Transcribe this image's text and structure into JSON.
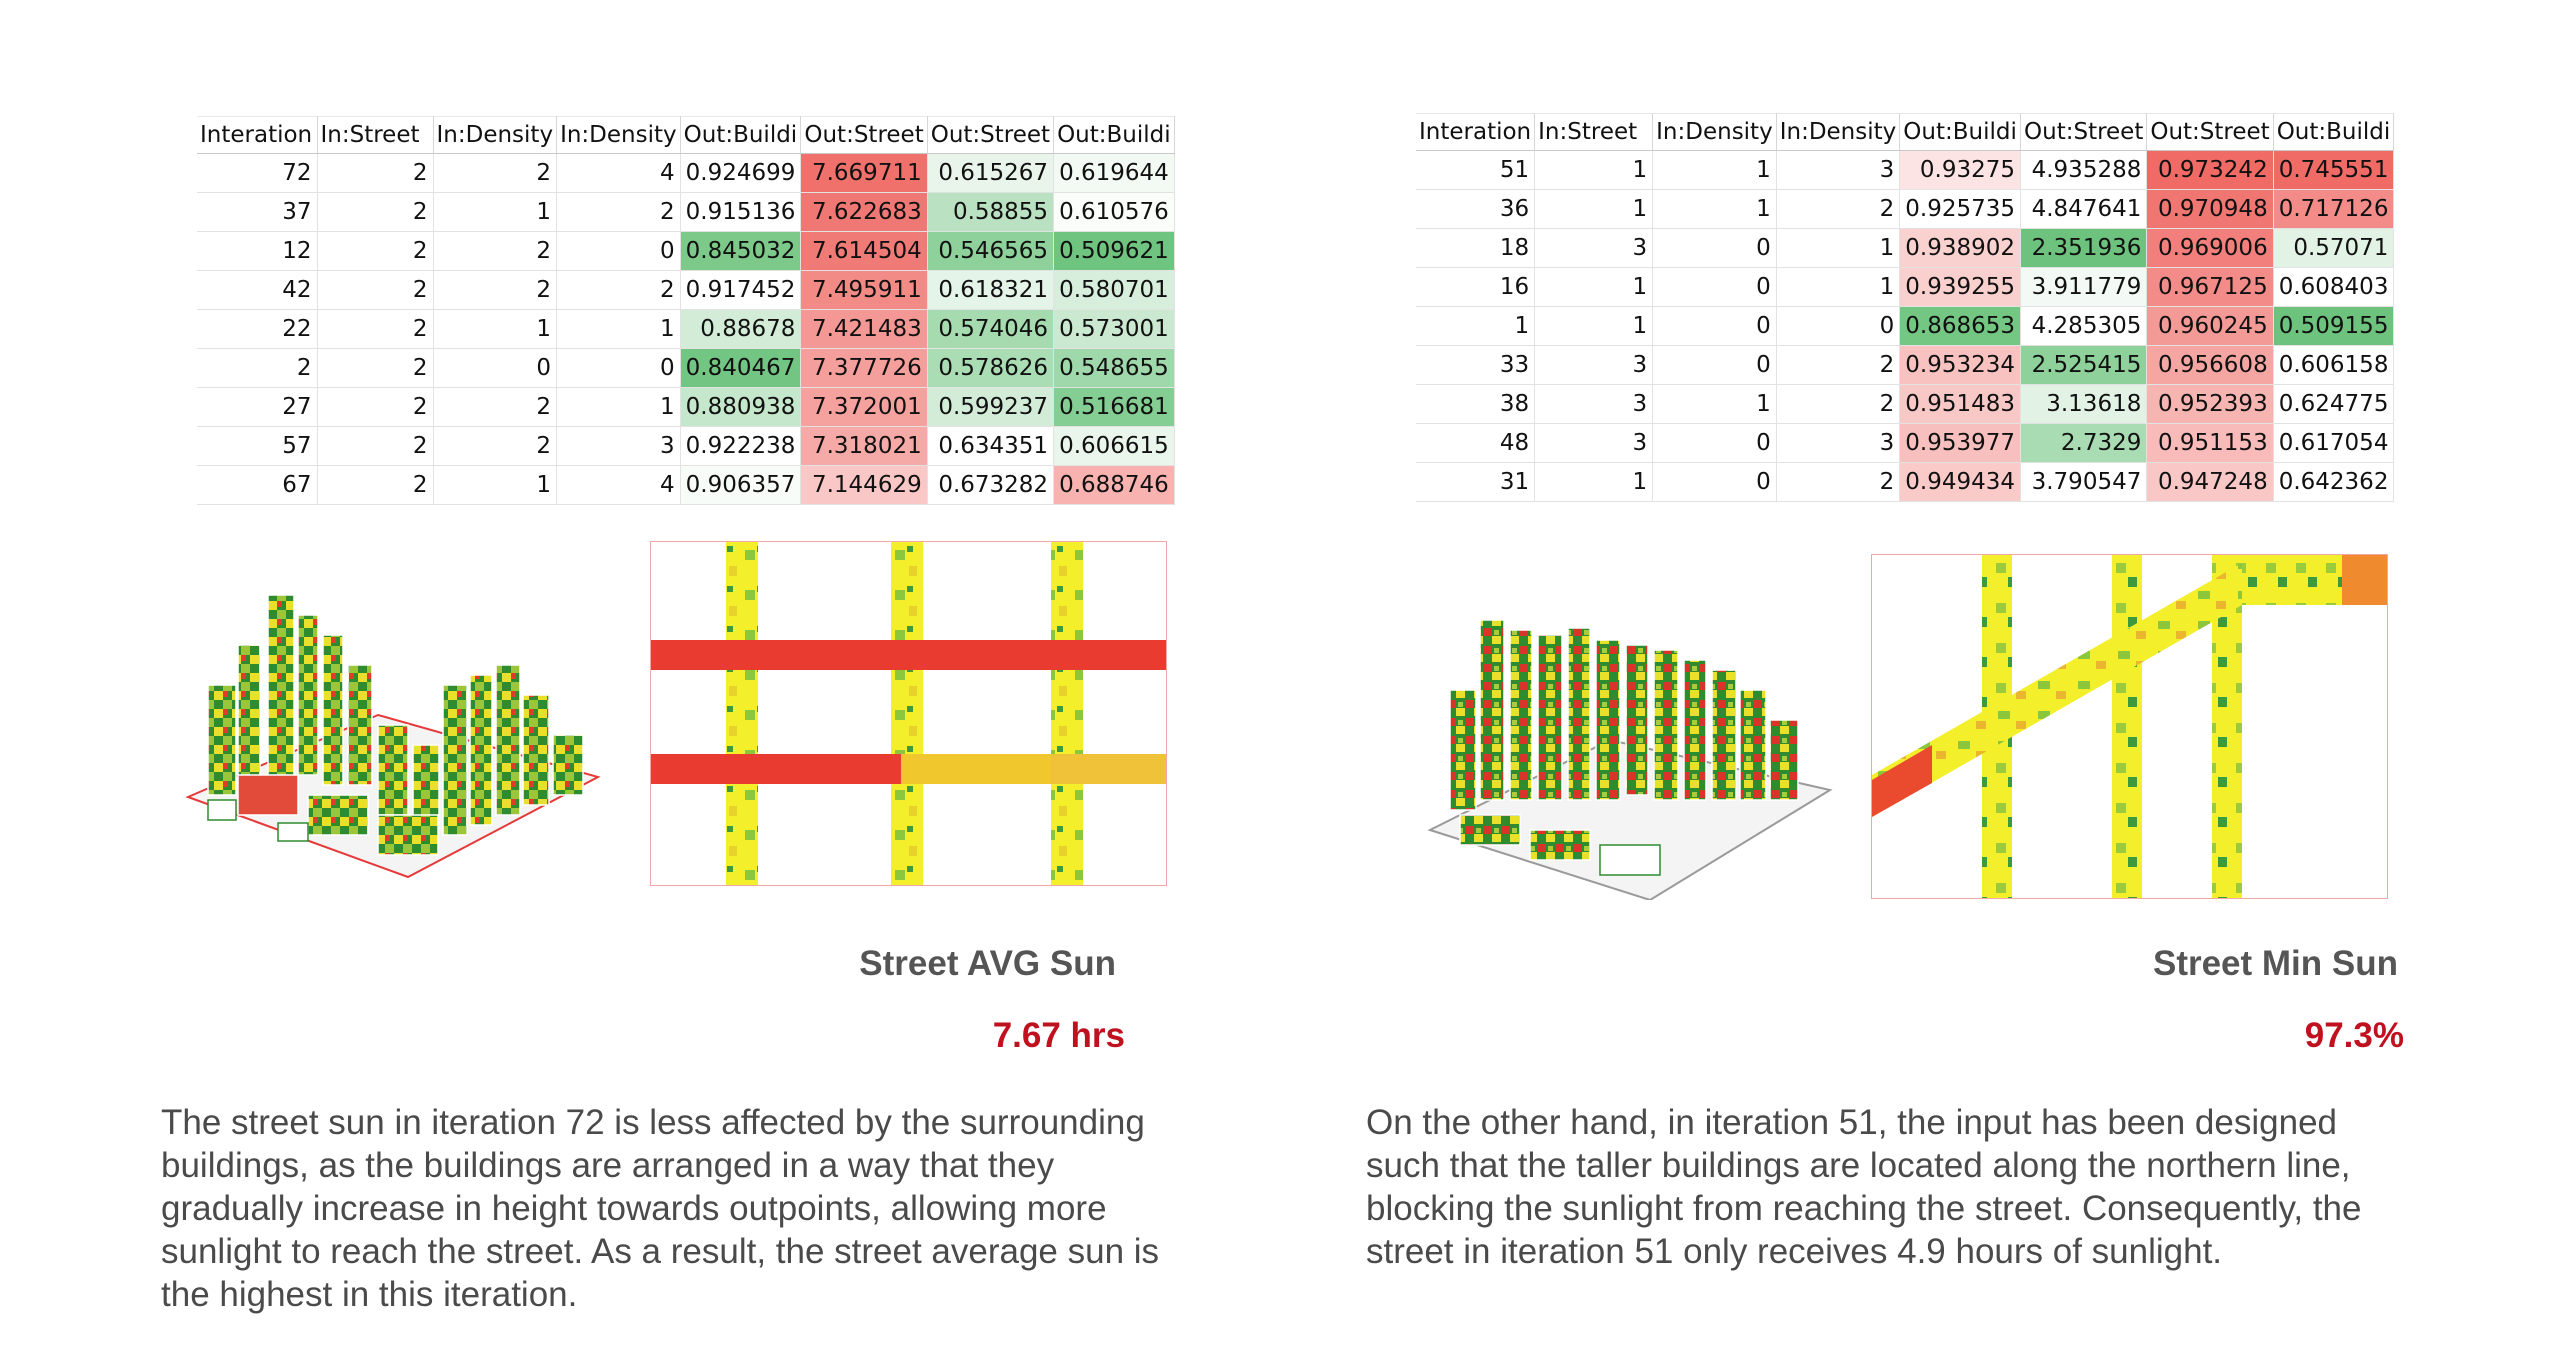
{
  "left": {
    "table": {
      "headers": [
        "Interation",
        "In:Street",
        "In:Density",
        "In:Density",
        "Out:Buildi",
        "Out:Street",
        "Out:Street",
        "Out:Buildi"
      ],
      "rows": [
        [
          "72",
          "2",
          "2",
          "4",
          "0.924699",
          "7.669711",
          "0.615267",
          "0.619644"
        ],
        [
          "37",
          "2",
          "1",
          "2",
          "0.915136",
          "7.622683",
          "0.58855",
          "0.610576"
        ],
        [
          "12",
          "2",
          "2",
          "0",
          "0.845032",
          "7.614504",
          "0.546565",
          "0.509621"
        ],
        [
          "42",
          "2",
          "2",
          "2",
          "0.917452",
          "7.495911",
          "0.618321",
          "0.580701"
        ],
        [
          "22",
          "2",
          "1",
          "1",
          "0.88678",
          "7.421483",
          "0.574046",
          "0.573001"
        ],
        [
          "2",
          "2",
          "0",
          "0",
          "0.840467",
          "7.377726",
          "0.578626",
          "0.548655"
        ],
        [
          "27",
          "2",
          "2",
          "1",
          "0.880938",
          "7.372001",
          "0.599237",
          "0.516681"
        ],
        [
          "57",
          "2",
          "2",
          "3",
          "0.922238",
          "7.318021",
          "0.634351",
          "0.606615"
        ],
        [
          "67",
          "2",
          "1",
          "4",
          "0.906357",
          "7.144629",
          "0.673282",
          "0.688746"
        ]
      ],
      "cell_colors": [
        [
          null,
          null,
          null,
          null,
          "#ffffff",
          "#f0706c",
          "#e9f5eb",
          "#f3f9f3"
        ],
        [
          null,
          null,
          null,
          null,
          "#ffffff",
          "#f07874",
          "#b9e1c2",
          "#fafdfa"
        ],
        [
          null,
          null,
          null,
          null,
          "#7cc98a",
          "#f07a76",
          "#8ed19a",
          "#6fc480"
        ],
        [
          null,
          null,
          null,
          null,
          "#ffffff",
          "#f28a86",
          "#e5f4e8",
          "#d6eedb"
        ],
        [
          null,
          null,
          null,
          null,
          "#d2ecd7",
          "#f39894",
          "#a6dbb0",
          "#cbe9d1"
        ],
        [
          null,
          null,
          null,
          null,
          "#72c582",
          "#f49f9c",
          "#abddb5",
          "#9fd8aa"
        ],
        [
          null,
          null,
          null,
          null,
          "#c5e7cc",
          "#f5a19d",
          "#d3ecd8",
          "#84cd93"
        ],
        [
          null,
          null,
          null,
          null,
          "#ffffff",
          "#f5aaa7",
          "#ffffff",
          "#eaf6ec"
        ],
        [
          null,
          null,
          null,
          null,
          "#f8fcf8",
          "#f9c8c6",
          "#ffffff",
          "#f8b3b1"
        ]
      ]
    },
    "metric_label": "Street AVG Sun",
    "metric_value": "7.67 hrs",
    "description": "The street sun in iteration 72 is less affected by the surrounding buildings, as the buildings are arranged in a way that they gradually increase in height towards outpoints, allowing more sunlight to reach the street. As a result, the street average sun is the highest in this iteration."
  },
  "right": {
    "table": {
      "headers": [
        "Interation",
        "In:Street",
        "In:Density",
        "In:Density",
        "Out:Buildi",
        "Out:Street",
        "Out:Street",
        "Out:Buildi"
      ],
      "rows": [
        [
          "51",
          "1",
          "1",
          "3",
          "0.93275",
          "4.935288",
          "0.973242",
          "0.745551"
        ],
        [
          "36",
          "1",
          "1",
          "2",
          "0.925735",
          "4.847641",
          "0.970948",
          "0.717126"
        ],
        [
          "18",
          "3",
          "0",
          "1",
          "0.938902",
          "2.351936",
          "0.969006",
          "0.57071"
        ],
        [
          "16",
          "1",
          "0",
          "1",
          "0.939255",
          "3.911779",
          "0.967125",
          "0.608403"
        ],
        [
          "1",
          "1",
          "0",
          "0",
          "0.868653",
          "4.285305",
          "0.960245",
          "0.509155"
        ],
        [
          "33",
          "3",
          "0",
          "2",
          "0.953234",
          "2.525415",
          "0.956608",
          "0.606158"
        ],
        [
          "38",
          "3",
          "1",
          "2",
          "0.951483",
          "3.13618",
          "0.952393",
          "0.624775"
        ],
        [
          "48",
          "3",
          "0",
          "3",
          "0.953977",
          "2.7329",
          "0.951153",
          "0.617054"
        ],
        [
          "31",
          "1",
          "0",
          "2",
          "0.949434",
          "3.790547",
          "0.947248",
          "0.642362"
        ]
      ],
      "cell_colors": [
        [
          null,
          null,
          null,
          null,
          "#fbe4e3",
          "#ffffff",
          "#f06a66",
          "#f06a66"
        ],
        [
          null,
          null,
          null,
          null,
          "#ffffff",
          "#ffffff",
          "#f07672",
          "#f38c89"
        ],
        [
          null,
          null,
          null,
          null,
          "#f9d2d0",
          "#6dc37d",
          "#f27f7b",
          "#e2f3e5"
        ],
        [
          null,
          null,
          null,
          null,
          "#f9d0ce",
          "#f3f9f4",
          "#f38c89",
          "#ffffff"
        ],
        [
          null,
          null,
          null,
          null,
          "#74c683",
          "#ffffff",
          "#f49a96",
          "#6dc37d"
        ],
        [
          null,
          null,
          null,
          null,
          "#f8c2c0",
          "#8ed19a",
          "#f5a6a3",
          "#ffffff"
        ],
        [
          null,
          null,
          null,
          null,
          "#f8c8c6",
          "#e2f2e5",
          "#f7b5b2",
          "#ffffff"
        ],
        [
          null,
          null,
          null,
          null,
          "#f7bfbd",
          "#aadcb3",
          "#f8bbb9",
          "#ffffff"
        ],
        [
          null,
          null,
          null,
          null,
          "#f9cac8",
          "#ffffff",
          "#f9c8c6",
          "#ffffff"
        ]
      ]
    },
    "metric_label": "Street Min Sun",
    "metric_value": "97.3%",
    "description": "On the other hand, in iteration 51, the input has been designed such that the taller buildings are located along the northern line, blocking the sunlight from reaching the street. Consequently, the street in iteration 51 only receives 4.9 hours of sunlight."
  }
}
